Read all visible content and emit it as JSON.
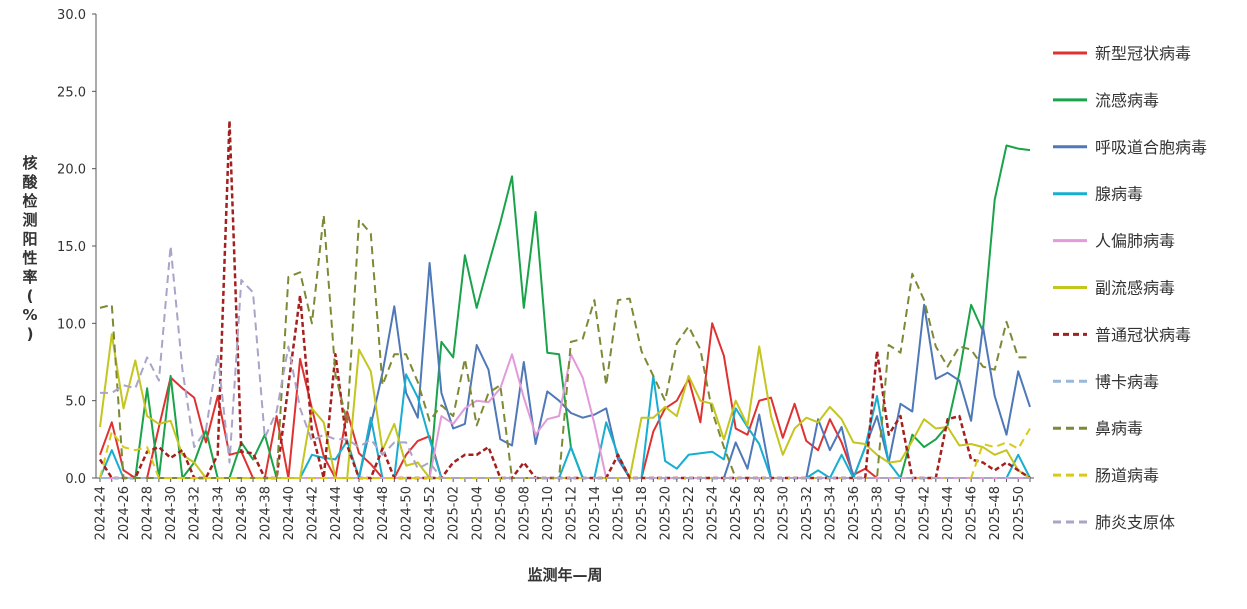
{
  "chart_data": {
    "type": "line",
    "xlabel": "监测年—周",
    "ylabel": "核酸检测阳性率(%)",
    "ylim": [
      0,
      30
    ],
    "yticks": [
      "0.0",
      "5.0",
      "10.0",
      "15.0",
      "20.0",
      "25.0",
      "30.0"
    ],
    "categories": [
      "2024-24",
      "2024-25",
      "2024-26",
      "2024-27",
      "2024-28",
      "2024-29",
      "2024-30",
      "2024-31",
      "2024-32",
      "2024-33",
      "2024-34",
      "2024-35",
      "2024-36",
      "2024-37",
      "2024-38",
      "2024-39",
      "2024-40",
      "2024-41",
      "2024-42",
      "2024-43",
      "2024-44",
      "2024-45",
      "2024-46",
      "2024-47",
      "2024-48",
      "2024-49",
      "2024-50",
      "2024-51",
      "2024-52",
      "2025-01",
      "2025-02",
      "2025-03",
      "2025-04",
      "2025-05",
      "2025-06",
      "2025-07",
      "2025-08",
      "2025-09",
      "2025-10",
      "2025-11",
      "2025-12",
      "2025-13",
      "2025-14",
      "2025-15",
      "2025-16",
      "2025-17",
      "2025-18",
      "2025-19",
      "2025-20",
      "2025-21",
      "2025-22",
      "2025-23",
      "2025-24",
      "2025-25",
      "2025-26",
      "2025-27",
      "2025-28",
      "2025-29",
      "2025-30",
      "2025-31",
      "2025-32",
      "2025-33",
      "2025-34",
      "2025-35",
      "2025-36",
      "2025-37",
      "2025-38",
      "2025-39",
      "2025-40",
      "2025-41",
      "2025-42",
      "2025-43",
      "2025-44",
      "2025-45",
      "2025-46",
      "2025-47",
      "2025-48",
      "2025-49",
      "2025-50",
      "2025-51"
    ],
    "x_tick_labels": [
      "2024-24",
      "2024-26",
      "2024-28",
      "2024-30",
      "2024-32",
      "2024-34",
      "2024-36",
      "2024-38",
      "2024-40",
      "2024-42",
      "2024-44",
      "2024-46",
      "2024-48",
      "2024-50",
      "2024-52",
      "2025-02",
      "2025-04",
      "2025-06",
      "2025-08",
      "2025-10",
      "2025-12",
      "2025-14",
      "2025-16",
      "2025-18",
      "2025-20",
      "2025-22",
      "2025-24",
      "2025-26",
      "2025-28",
      "2025-30",
      "2025-32",
      "2025-34",
      "2025-36",
      "2025-38",
      "2025-40",
      "2025-42",
      "2025-44",
      "2025-46",
      "2025-48",
      "2025-50"
    ],
    "series": [
      {
        "name": "新型冠状病毒",
        "color": "#e03131",
        "dash": "solid",
        "values": [
          1.5,
          3.6,
          0.5,
          0,
          0,
          3.3,
          6.5,
          5.8,
          5.2,
          2.3,
          5.3,
          1.5,
          1.7,
          0,
          0,
          4.0,
          0,
          7.7,
          4.5,
          1.4,
          0,
          4.3,
          1.6,
          0.9,
          0,
          0,
          1.5,
          2.4,
          2.7,
          0,
          0,
          0,
          0,
          0,
          0,
          0,
          0,
          0,
          0,
          0,
          0,
          0,
          0,
          0,
          0,
          0,
          0,
          3.0,
          4.5,
          5.0,
          6.4,
          3.6,
          10.0,
          7.9,
          3.2,
          2.8,
          5.0,
          5.2,
          2.6,
          4.8,
          2.4,
          1.8,
          3.8,
          2.3,
          0.2,
          0.6,
          0,
          0,
          0,
          0,
          0,
          0,
          0,
          0,
          0,
          0,
          0,
          0,
          0,
          0
        ]
      },
      {
        "name": "流感病毒",
        "color": "#1aa34a",
        "dash": "solid",
        "values": [
          0,
          0,
          0,
          0,
          5.8,
          0,
          6.6,
          0,
          1.0,
          3.1,
          0,
          0,
          2.3,
          1.2,
          2.8,
          0,
          0,
          0,
          0,
          0,
          0,
          0,
          0,
          0,
          0,
          0,
          0,
          0,
          0,
          8.8,
          7.8,
          14.4,
          11.0,
          13.8,
          16.5,
          19.5,
          11.0,
          17.2,
          8.1,
          8.0,
          2.0,
          0,
          0,
          0,
          0,
          0,
          0,
          0,
          0,
          0,
          0,
          0,
          0,
          0,
          0,
          0,
          0,
          0,
          0,
          0,
          0,
          0,
          0,
          0,
          0,
          0,
          0,
          0,
          0,
          2.8,
          2.0,
          2.5,
          3.4,
          6.8,
          11.2,
          9.5,
          18.0,
          21.5,
          21.3,
          21.2
        ]
      },
      {
        "name": "呼吸道合胞病毒",
        "color": "#4f78b8",
        "dash": "solid",
        "values": [
          0,
          0,
          0,
          0,
          0,
          0,
          0,
          0,
          0,
          0,
          0,
          0,
          0,
          0,
          0,
          0,
          0,
          0,
          0,
          0,
          0,
          0,
          0,
          3.4,
          6.8,
          11.1,
          5.5,
          3.9,
          13.9,
          5.5,
          3.2,
          3.5,
          8.6,
          7.0,
          2.5,
          2.1,
          7.5,
          2.2,
          5.6,
          5.0,
          4.2,
          3.9,
          4.1,
          4.5,
          1.2,
          0,
          0,
          0,
          0,
          0,
          0,
          0,
          0,
          0,
          2.3,
          0.6,
          4.1,
          0,
          0,
          0,
          0,
          3.8,
          1.8,
          3.3,
          0,
          2.0,
          4.0,
          1.0,
          4.8,
          4.3,
          11.2,
          6.4,
          6.8,
          6.3,
          3.7,
          9.8,
          5.3,
          2.8,
          6.9,
          4.6
        ]
      },
      {
        "name": "腺病毒",
        "color": "#16aed1",
        "dash": "solid",
        "values": [
          0,
          1.8,
          0,
          0,
          0,
          0,
          0,
          0,
          0,
          0,
          0,
          0,
          0,
          0,
          0,
          0,
          0,
          0,
          1.5,
          1.3,
          1.2,
          2.4,
          0,
          3.9,
          0,
          0,
          6.7,
          5.2,
          2.5,
          0,
          0,
          0,
          0,
          0,
          0,
          0,
          0,
          0,
          0,
          0,
          2.0,
          0,
          0,
          3.6,
          1.5,
          0,
          0,
          6.6,
          1.1,
          0.6,
          1.5,
          1.6,
          1.7,
          1.2,
          4.5,
          3.3,
          2.2,
          0,
          0,
          0,
          0,
          0.5,
          0,
          1.5,
          0,
          2.0,
          5.3,
          1.0,
          0,
          0,
          0,
          0,
          0,
          0,
          0,
          0,
          0,
          0,
          1.5,
          0
        ]
      },
      {
        "name": "人偏肺病毒",
        "color": "#e29ad8",
        "dash": "solid",
        "values": [
          0,
          0,
          0,
          0,
          0,
          0,
          0,
          0,
          0,
          0,
          0,
          0,
          0,
          0,
          0,
          0,
          0,
          0,
          0,
          0,
          0,
          0,
          0,
          0,
          0,
          0,
          0,
          0,
          0,
          4.0,
          3.5,
          4.5,
          5.0,
          4.9,
          5.8,
          8.0,
          5.2,
          2.8,
          3.8,
          4.0,
          8.0,
          6.5,
          3.5,
          0,
          0,
          0,
          0,
          0,
          0,
          0,
          0,
          0,
          0,
          0,
          0,
          0,
          0,
          0,
          0,
          0,
          0,
          0,
          0,
          0,
          0,
          0,
          0,
          0,
          0,
          0,
          0,
          0,
          0,
          0,
          0,
          0,
          0,
          0,
          0,
          0
        ]
      },
      {
        "name": "副流感病毒",
        "color": "#c4c51e",
        "dash": "solid",
        "values": [
          3.3,
          9.3,
          4.5,
          7.6,
          4.0,
          3.5,
          3.7,
          1.5,
          1.0,
          0,
          0,
          0,
          0,
          0,
          0,
          0,
          0,
          0,
          4.5,
          3.6,
          0,
          0,
          8.3,
          6.9,
          1.8,
          3.5,
          0.8,
          1.0,
          0,
          0,
          0,
          0,
          0,
          0,
          0,
          0,
          0,
          0,
          0,
          0,
          0,
          0,
          0,
          0,
          0,
          0,
          3.9,
          3.9,
          4.6,
          4.0,
          6.6,
          5.0,
          4.8,
          2.5,
          5.0,
          3.4,
          8.5,
          4.0,
          1.5,
          3.2,
          3.9,
          3.6,
          4.6,
          3.8,
          2.3,
          2.2,
          1.5,
          1.0,
          1.1,
          2.4,
          3.8,
          3.2,
          3.3,
          2.1,
          2.2,
          2.0,
          1.5,
          1.8,
          0.5,
          0
        ]
      },
      {
        "name": "普通冠状病毒",
        "color": "#a51f1f",
        "dash": "bold-dash",
        "values": [
          1.2,
          0,
          0,
          0,
          1.7,
          2.0,
          1.3,
          1.8,
          0,
          0,
          1.5,
          23.1,
          1.7,
          1.6,
          0,
          0,
          6.0,
          11.8,
          3.0,
          0,
          8.0,
          2.1,
          0,
          0,
          1.9,
          0,
          0,
          0,
          0,
          0,
          1.0,
          1.5,
          1.5,
          2.0,
          0,
          0,
          1.0,
          0,
          0,
          0,
          0,
          0,
          0,
          0,
          1.5,
          0,
          0,
          0,
          0,
          0,
          0,
          0,
          0,
          0,
          0,
          0,
          0,
          0,
          0,
          0,
          0,
          0,
          0,
          0,
          0,
          0,
          8.2,
          2.8,
          4.0,
          0,
          0,
          0,
          3.8,
          4.0,
          1.2,
          1.0,
          0.5,
          1.0,
          0.5,
          0
        ]
      },
      {
        "name": "博卡病毒",
        "color": "#9cb8d8",
        "dash": "dash",
        "values": [
          0,
          0,
          0,
          0,
          0,
          0,
          0,
          0,
          0,
          0,
          0,
          0,
          0,
          0,
          0,
          0,
          0,
          0,
          0,
          0,
          0,
          0,
          0,
          0,
          0,
          0,
          0,
          0,
          0,
          0,
          0,
          0,
          0,
          0,
          0,
          0,
          0,
          0,
          0,
          0,
          0,
          0,
          0,
          0,
          0,
          0,
          0,
          0,
          0,
          0,
          0,
          0,
          0,
          0,
          0,
          0,
          0,
          0,
          0,
          0,
          0,
          0,
          0,
          0,
          0,
          0,
          0,
          0,
          0,
          0,
          0,
          0,
          0,
          0,
          0,
          0,
          0,
          0,
          0,
          0
        ]
      },
      {
        "name": "鼻病毒",
        "color": "#7d8a35",
        "dash": "dash",
        "values": [
          11.0,
          11.2,
          0,
          0,
          0,
          0,
          0,
          0,
          0,
          0,
          0,
          0,
          0,
          0,
          0,
          0,
          13.0,
          13.3,
          10.0,
          17.0,
          6.7,
          3.6,
          16.7,
          15.8,
          6.0,
          8.0,
          8.0,
          6.2,
          3.7,
          4.7,
          4.0,
          7.7,
          3.4,
          5.5,
          6.0,
          0,
          0,
          0,
          0,
          0,
          8.8,
          9.0,
          11.5,
          6.0,
          11.5,
          11.6,
          8.2,
          6.6,
          5.0,
          8.7,
          9.8,
          8.3,
          4.3,
          2.0,
          0,
          0,
          0,
          0,
          0,
          0,
          0,
          0,
          0,
          0,
          0,
          0,
          0,
          8.6,
          8.1,
          13.2,
          11.5,
          8.5,
          7.2,
          8.5,
          8.3,
          7.2,
          7.0,
          10.1,
          7.8,
          7.8
        ]
      },
      {
        "name": "肠道病毒",
        "color": "#d9c919",
        "dash": "dash",
        "values": [
          0,
          3.0,
          2.0,
          1.8,
          2.0,
          0,
          0,
          0,
          0,
          0,
          0,
          0,
          0,
          0,
          0,
          0,
          0,
          0,
          0,
          0,
          0,
          0,
          0,
          0,
          0,
          0,
          0,
          0,
          0,
          0,
          0,
          0,
          0,
          0,
          0,
          0,
          0,
          0,
          0,
          0,
          0,
          0,
          0,
          0,
          0,
          0,
          0,
          0,
          0,
          0,
          0,
          0,
          0,
          0,
          0,
          0,
          0,
          0,
          0,
          0,
          0,
          0,
          0,
          0,
          0,
          0,
          0,
          0,
          0,
          0,
          0,
          0,
          0,
          0,
          0,
          2.2,
          2.0,
          2.3,
          1.9,
          3.2
        ]
      },
      {
        "name": "肺炎支原体",
        "color": "#a9a4c8",
        "dash": "dash",
        "values": [
          5.5,
          5.5,
          6.0,
          5.8,
          7.8,
          6.3,
          15.0,
          7.0,
          2.0,
          3.1,
          8.0,
          1.0,
          12.8,
          12.0,
          2.6,
          4.3,
          8.5,
          4.5,
          2.4,
          2.8,
          2.5,
          2.5,
          2.0,
          2.5,
          1.5,
          2.3,
          2.3,
          0.6,
          1.0,
          0,
          0,
          0,
          0,
          0,
          0,
          0,
          0,
          0,
          0,
          0,
          0,
          0,
          0,
          0,
          0,
          0,
          0,
          0,
          0,
          0,
          0,
          0,
          0,
          0,
          0,
          0,
          0,
          0,
          0,
          0,
          0,
          0,
          0,
          0,
          0,
          0,
          0,
          0,
          0,
          0,
          0,
          0,
          0,
          0,
          0,
          0,
          0,
          0,
          0,
          0
        ]
      }
    ],
    "legend_position": "right",
    "grid": false
  }
}
